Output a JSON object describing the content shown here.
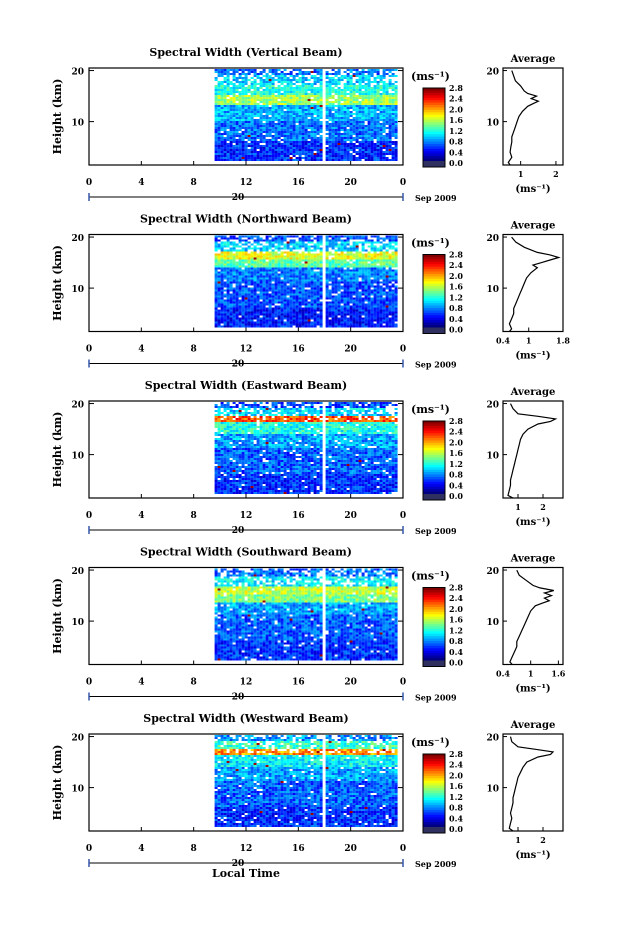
{
  "figure": {
    "xlabel": "Local Time",
    "date_label": "Sep 2009",
    "day_label": "20",
    "colorbar_unit": "(ms⁻¹)",
    "avg_title": "Average"
  },
  "chart_data": [
    {
      "type": "heatmap",
      "title": "Spectral Width (Vertical Beam)",
      "xlabel": "Local Time",
      "ylabel": "Height (km)",
      "x_ticks": [
        "0",
        "4",
        "8",
        "12",
        "16",
        "20",
        "0"
      ],
      "x_range_hours": [
        0,
        24
      ],
      "data_x_range_hours": [
        9.6,
        24
      ],
      "data_gap_hours": [
        17.7,
        18.0
      ],
      "y_ticks": [
        "10",
        "20"
      ],
      "y_range_km": [
        1.5,
        20.5
      ],
      "colorbar": {
        "unit": "(ms⁻¹)",
        "ticks": [
          "0.0",
          "0.4",
          "0.8",
          "1.2",
          "1.6",
          "2.0",
          "2.4",
          "2.8"
        ],
        "range": [
          0,
          3.0
        ]
      },
      "bands": [
        {
          "h0": 2,
          "h1": 6,
          "v": 0.5
        },
        {
          "h0": 6,
          "h1": 10,
          "v": 0.7
        },
        {
          "h0": 10,
          "h1": 13,
          "v": 0.9
        },
        {
          "h0": 13,
          "h1": 15,
          "v": 1.6
        },
        {
          "h0": 15,
          "h1": 17,
          "v": 1.2
        },
        {
          "h0": 17,
          "h1": 19,
          "v": 1.0
        },
        {
          "h0": 19,
          "h1": 20,
          "v": 0.7
        }
      ],
      "average": {
        "title": "Average",
        "xlabel": "(ms⁻¹)",
        "x_ticks": [
          "1",
          "2"
        ],
        "x_range": [
          0.5,
          2.2
        ],
        "y_ticks": [
          "10",
          "20"
        ],
        "height_km": [
          1.5,
          2,
          3,
          4,
          5,
          6,
          7,
          8,
          9,
          10,
          11,
          12,
          13,
          13.5,
          14,
          14.5,
          15,
          15.5,
          16,
          17,
          18,
          19,
          20
        ],
        "values": [
          0.7,
          0.65,
          0.75,
          0.7,
          0.72,
          0.75,
          0.75,
          0.8,
          0.85,
          0.9,
          0.95,
          1.05,
          1.2,
          1.35,
          1.5,
          1.3,
          1.45,
          1.2,
          1.1,
          1.0,
          0.85,
          0.8,
          0.75
        ]
      }
    },
    {
      "type": "heatmap",
      "title": "Spectral Width (Northward Beam)",
      "xlabel": "Local Time",
      "ylabel": "Height (km)",
      "x_ticks": [
        "0",
        "4",
        "8",
        "12",
        "16",
        "20",
        "0"
      ],
      "x_range_hours": [
        0,
        24
      ],
      "data_x_range_hours": [
        9.6,
        24
      ],
      "data_gap_hours": [
        17.7,
        18.0
      ],
      "y_ticks": [
        "10",
        "20"
      ],
      "y_range_km": [
        1.5,
        20.5
      ],
      "colorbar": {
        "unit": "(ms⁻¹)",
        "ticks": [
          "0.0",
          "0.4",
          "0.8",
          "1.2",
          "1.6",
          "2.0",
          "2.4",
          "2.8"
        ],
        "range": [
          0,
          3.0
        ]
      },
      "bands": [
        {
          "h0": 2,
          "h1": 6,
          "v": 0.45
        },
        {
          "h0": 6,
          "h1": 11,
          "v": 0.6
        },
        {
          "h0": 11,
          "h1": 14,
          "v": 0.75
        },
        {
          "h0": 14,
          "h1": 15.5,
          "v": 1.4
        },
        {
          "h0": 15.5,
          "h1": 17,
          "v": 1.8
        },
        {
          "h0": 17,
          "h1": 19,
          "v": 1.0
        },
        {
          "h0": 19,
          "h1": 20,
          "v": 0.6
        }
      ],
      "average": {
        "title": "Average",
        "xlabel": "(ms⁻¹)",
        "x_ticks": [
          "0.4",
          "1",
          "1.8"
        ],
        "x_range": [
          0.4,
          1.8
        ],
        "y_ticks": [
          "10",
          "20"
        ],
        "height_km": [
          1.5,
          2,
          3,
          4,
          5,
          6,
          7,
          8,
          9,
          10,
          11,
          12,
          13,
          14,
          14.5,
          15,
          15.5,
          16,
          16.5,
          17,
          18,
          19,
          20
        ],
        "values": [
          0.55,
          0.6,
          0.55,
          0.6,
          0.65,
          0.65,
          0.7,
          0.75,
          0.8,
          0.85,
          0.9,
          0.95,
          1.05,
          1.2,
          1.1,
          1.3,
          1.5,
          1.7,
          1.5,
          1.2,
          0.9,
          0.7,
          0.6
        ]
      }
    },
    {
      "type": "heatmap",
      "title": "Spectral Width (Eastward Beam)",
      "xlabel": "Local Time",
      "ylabel": "Height (km)",
      "x_ticks": [
        "0",
        "4",
        "8",
        "12",
        "16",
        "20",
        "0"
      ],
      "x_range_hours": [
        0,
        24
      ],
      "data_x_range_hours": [
        9.6,
        24
      ],
      "data_gap_hours": [
        17.7,
        18.0
      ],
      "y_ticks": [
        "10",
        "20"
      ],
      "y_range_km": [
        1.5,
        20.5
      ],
      "colorbar": {
        "unit": "(ms⁻¹)",
        "ticks": [
          "0.0",
          "0.4",
          "0.8",
          "1.2",
          "1.6",
          "2.0",
          "2.4",
          "2.8"
        ],
        "range": [
          0,
          3.0
        ]
      },
      "bands": [
        {
          "h0": 2,
          "h1": 6,
          "v": 0.5
        },
        {
          "h0": 6,
          "h1": 11,
          "v": 0.65
        },
        {
          "h0": 11,
          "h1": 14,
          "v": 0.85
        },
        {
          "h0": 14,
          "h1": 16,
          "v": 1.2
        },
        {
          "h0": 16,
          "h1": 17.5,
          "v": 2.4
        },
        {
          "h0": 17.5,
          "h1": 19,
          "v": 1.0
        },
        {
          "h0": 19,
          "h1": 20,
          "v": 0.6
        }
      ],
      "average": {
        "title": "Average",
        "xlabel": "(ms⁻¹)",
        "x_ticks": [
          "1",
          "2"
        ],
        "x_range": [
          0.4,
          2.8
        ],
        "y_ticks": [
          "10",
          "20"
        ],
        "height_km": [
          1.5,
          2,
          3,
          4,
          5,
          6,
          7,
          8,
          9,
          10,
          11,
          12,
          13,
          14,
          15,
          16,
          16.5,
          17,
          17.5,
          18,
          19,
          20
        ],
        "values": [
          0.8,
          0.6,
          0.65,
          0.7,
          0.7,
          0.75,
          0.8,
          0.85,
          0.9,
          0.95,
          1.0,
          1.05,
          1.1,
          1.2,
          1.4,
          1.8,
          2.3,
          2.5,
          1.8,
          1.0,
          0.8,
          0.7
        ]
      }
    },
    {
      "type": "heatmap",
      "title": "Spectral Width (Southward Beam)",
      "xlabel": "Local Time",
      "ylabel": "Height (km)",
      "x_ticks": [
        "0",
        "4",
        "8",
        "12",
        "16",
        "20",
        "0"
      ],
      "x_range_hours": [
        0,
        24
      ],
      "data_x_range_hours": [
        9.6,
        24
      ],
      "data_gap_hours": [
        17.7,
        18.0
      ],
      "y_ticks": [
        "10",
        "20"
      ],
      "y_range_km": [
        1.5,
        20.5
      ],
      "colorbar": {
        "unit": "(ms⁻¹)",
        "ticks": [
          "0.0",
          "0.4",
          "0.8",
          "1.2",
          "1.6",
          "2.0",
          "2.4",
          "2.8"
        ],
        "range": [
          0,
          3.0
        ]
      },
      "bands": [
        {
          "h0": 2,
          "h1": 6,
          "v": 0.5
        },
        {
          "h0": 6,
          "h1": 11,
          "v": 0.65
        },
        {
          "h0": 11,
          "h1": 13.5,
          "v": 0.85
        },
        {
          "h0": 13.5,
          "h1": 15,
          "v": 1.5
        },
        {
          "h0": 15,
          "h1": 16.5,
          "v": 1.7
        },
        {
          "h0": 16.5,
          "h1": 18.5,
          "v": 1.1
        },
        {
          "h0": 18.5,
          "h1": 20,
          "v": 0.7
        }
      ],
      "average": {
        "title": "Average",
        "xlabel": "(ms⁻¹)",
        "x_ticks": [
          "0.4",
          "1",
          "1.6"
        ],
        "x_range": [
          0.4,
          1.7
        ],
        "y_ticks": [
          "10",
          "20"
        ],
        "height_km": [
          1.5,
          2,
          3,
          4,
          5,
          6,
          7,
          8,
          9,
          10,
          11,
          12,
          13,
          13.5,
          14,
          14.5,
          15,
          15.5,
          16,
          16.5,
          17,
          18,
          19,
          20
        ],
        "values": [
          0.6,
          0.55,
          0.6,
          0.65,
          0.7,
          0.7,
          0.75,
          0.8,
          0.85,
          0.9,
          0.95,
          1.0,
          1.1,
          1.25,
          1.4,
          1.3,
          1.45,
          1.3,
          1.5,
          1.2,
          1.05,
          0.9,
          0.75,
          0.7
        ]
      }
    },
    {
      "type": "heatmap",
      "title": "Spectral Width (Westward Beam)",
      "xlabel": "Local Time",
      "ylabel": "Height (km)",
      "x_ticks": [
        "0",
        "4",
        "8",
        "12",
        "16",
        "20",
        "0"
      ],
      "x_range_hours": [
        0,
        24
      ],
      "data_x_range_hours": [
        9.6,
        24
      ],
      "data_gap_hours": [
        17.7,
        18.0
      ],
      "y_ticks": [
        "10",
        "20"
      ],
      "y_range_km": [
        1.5,
        20.5
      ],
      "colorbar": {
        "unit": "(ms⁻¹)",
        "ticks": [
          "0.0",
          "0.4",
          "0.8",
          "1.2",
          "1.6",
          "2.0",
          "2.4",
          "2.8"
        ],
        "range": [
          0,
          3.0
        ]
      },
      "bands": [
        {
          "h0": 2,
          "h1": 6,
          "v": 0.5
        },
        {
          "h0": 6,
          "h1": 11,
          "v": 0.65
        },
        {
          "h0": 11,
          "h1": 14,
          "v": 0.85
        },
        {
          "h0": 14,
          "h1": 16,
          "v": 1.1
        },
        {
          "h0": 16,
          "h1": 17.5,
          "v": 2.2
        },
        {
          "h0": 17.5,
          "h1": 19,
          "v": 1.3
        },
        {
          "h0": 19,
          "h1": 20,
          "v": 0.8
        }
      ],
      "average": {
        "title": "Average",
        "xlabel": "(ms⁻¹)",
        "x_ticks": [
          "1",
          "2"
        ],
        "x_range": [
          0.4,
          2.8
        ],
        "y_ticks": [
          "10",
          "20"
        ],
        "height_km": [
          1.5,
          2,
          3,
          4,
          5,
          6,
          7,
          8,
          9,
          10,
          11,
          12,
          13,
          14,
          15,
          16,
          16.5,
          17,
          17.5,
          18,
          19,
          20
        ],
        "values": [
          0.8,
          0.65,
          0.7,
          0.75,
          0.7,
          0.75,
          0.8,
          0.8,
          0.85,
          0.9,
          0.95,
          1.0,
          1.1,
          1.2,
          1.35,
          1.8,
          2.3,
          2.4,
          1.7,
          1.0,
          0.75,
          0.7
        ]
      }
    }
  ]
}
